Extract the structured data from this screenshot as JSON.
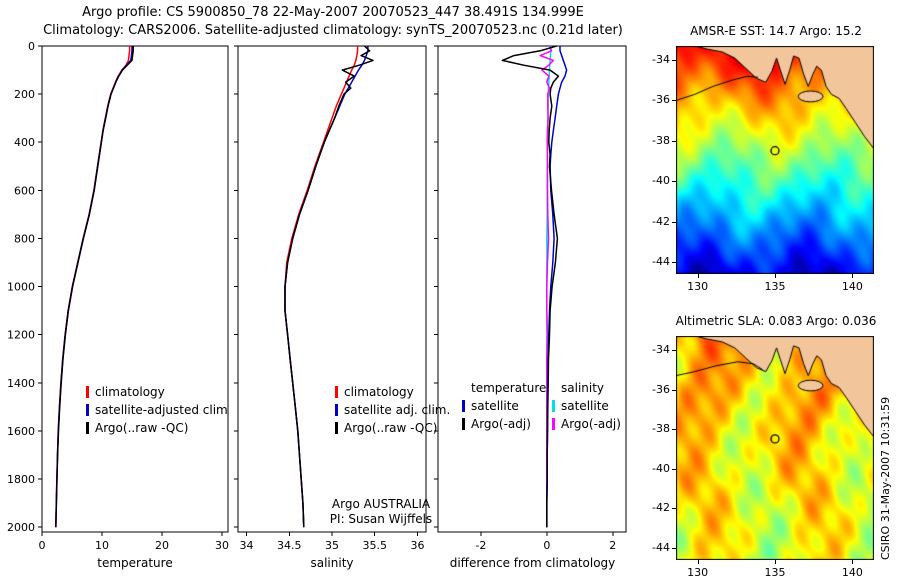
{
  "title": {
    "line1": "Argo profile: CS 5900850_78 22-May-2007 20070523_447 38.491S 134.999E",
    "line2": "Climatology: CARS2006. Satellite-adjusted climatology: synTS_20070523.nc (0.21d later)"
  },
  "credit": "CSIRO 31-May-2007 10:31:59",
  "colors": {
    "climatology": "#ff0000",
    "satellite": "#0000cd",
    "argo": "#000000",
    "satellite_salinity": "#00e0e8",
    "argo_salinity": "#ff00ff",
    "land": "#f2c59b",
    "coast": "#000000"
  },
  "coastline": [
    [
      128.5,
      -33.35
    ],
    [
      129.6,
      -33.25
    ],
    [
      130.6,
      -33.45
    ],
    [
      131.6,
      -33.6
    ],
    [
      132.4,
      -33.9
    ],
    [
      133.1,
      -34.4
    ],
    [
      133.8,
      -34.9
    ],
    [
      134.4,
      -35.1
    ],
    [
      134.8,
      -34.55
    ],
    [
      135.1,
      -33.9
    ],
    [
      135.35,
      -34.5
    ],
    [
      135.65,
      -35.2
    ],
    [
      135.95,
      -34.5
    ],
    [
      136.2,
      -33.8
    ],
    [
      136.55,
      -33.9
    ],
    [
      136.85,
      -34.7
    ],
    [
      137.15,
      -35.3
    ],
    [
      137.45,
      -34.7
    ],
    [
      137.7,
      -34.3
    ],
    [
      138.0,
      -34.5
    ],
    [
      138.3,
      -35.3
    ],
    [
      138.65,
      -35.7
    ],
    [
      139.15,
      -35.9
    ],
    [
      139.6,
      -36.4
    ],
    [
      140.2,
      -37.1
    ],
    [
      140.8,
      -37.8
    ],
    [
      141.5,
      -38.5
    ]
  ],
  "island": {
    "lon": 137.3,
    "lat": -35.8,
    "rx": 0.8,
    "ry": 0.27
  },
  "chart_data": [
    {
      "type": "line",
      "name": "temperature-profile",
      "xlabel": "temperature",
      "ylabel": "",
      "xlim": [
        0,
        31
      ],
      "ylim": [
        0,
        2020
      ],
      "xticks": [
        0,
        10,
        20,
        30
      ],
      "yticks": [
        0,
        200,
        400,
        600,
        800,
        1000,
        1200,
        1400,
        1600,
        1800,
        2000
      ],
      "grid": false,
      "legend_position": "lower-left",
      "depths": [
        0,
        20,
        40,
        60,
        80,
        100,
        125,
        150,
        175,
        200,
        250,
        300,
        350,
        400,
        450,
        500,
        600,
        700,
        800,
        900,
        1000,
        1100,
        1200,
        1300,
        1400,
        1500,
        1600,
        1700,
        1800,
        1900,
        2000
      ],
      "series": [
        {
          "name": "climatology",
          "color": "#ff0000",
          "values": [
            14.6,
            14.6,
            14.5,
            14.4,
            14.0,
            13.3,
            12.7,
            12.25,
            11.85,
            11.45,
            10.95,
            10.55,
            10.15,
            9.85,
            9.55,
            9.25,
            8.65,
            7.85,
            6.85,
            5.95,
            5.05,
            4.35,
            3.85,
            3.45,
            3.15,
            2.9,
            2.7,
            2.58,
            2.47,
            2.38,
            2.3
          ]
        },
        {
          "name": "satellite-adjusted climatology",
          "color": "#0000cd",
          "values": [
            15.0,
            15.0,
            14.9,
            14.8,
            14.1,
            13.4,
            12.75,
            12.3,
            11.9,
            11.5,
            11.0,
            10.6,
            10.18,
            9.88,
            9.57,
            9.27,
            8.67,
            7.87,
            6.87,
            5.97,
            5.07,
            4.37,
            3.87,
            3.47,
            3.17,
            2.92,
            2.72,
            2.59,
            2.48,
            2.39,
            2.3
          ]
        },
        {
          "name": "Argo(..raw -QC)",
          "color": "#000000",
          "values": [
            15.2,
            15.2,
            15.1,
            15.0,
            14.2,
            13.4,
            12.8,
            12.3,
            11.9,
            11.5,
            11.0,
            10.6,
            10.2,
            9.9,
            9.6,
            9.3,
            8.7,
            7.9,
            6.9,
            6.0,
            5.1,
            4.4,
            3.9,
            3.5,
            3.2,
            2.95,
            2.75,
            2.6,
            2.5,
            2.4,
            2.3
          ]
        }
      ]
    },
    {
      "type": "line",
      "name": "salinity-profile",
      "xlabel": "salinity",
      "ylabel": "",
      "xlim": [
        33.9,
        36.1
      ],
      "ylim": [
        0,
        2020
      ],
      "xticks": [
        34,
        34.5,
        35,
        35.5,
        36
      ],
      "yticks": [
        0,
        200,
        400,
        600,
        800,
        1000,
        1200,
        1400,
        1600,
        1800,
        2000
      ],
      "grid": false,
      "legend_position": "lower-left",
      "annotation": [
        "Argo AUSTRALIA",
        "PI: Susan Wijffels"
      ],
      "depths": [
        0,
        20,
        40,
        60,
        80,
        100,
        125,
        150,
        175,
        200,
        250,
        300,
        350,
        400,
        450,
        500,
        600,
        700,
        800,
        900,
        1000,
        1100,
        1200,
        1300,
        1400,
        1500,
        1600,
        1700,
        1800,
        1900,
        2000
      ],
      "series": [
        {
          "name": "climatology",
          "color": "#ff0000",
          "values": [
            35.3,
            35.3,
            35.29,
            35.28,
            35.26,
            35.23,
            35.2,
            35.17,
            35.14,
            35.11,
            35.05,
            35.0,
            34.95,
            34.9,
            34.85,
            34.8,
            34.71,
            34.61,
            34.53,
            34.47,
            34.45,
            34.45,
            34.48,
            34.51,
            34.54,
            34.57,
            34.6,
            34.62,
            34.64,
            34.66,
            34.67
          ]
        },
        {
          "name": "satellite adj. clim.",
          "color": "#0000cd",
          "values": [
            35.42,
            35.42,
            35.4,
            35.38,
            35.35,
            35.31,
            35.27,
            35.23,
            35.19,
            35.15,
            35.09,
            35.03,
            34.97,
            34.91,
            34.86,
            34.81,
            34.72,
            34.62,
            34.54,
            34.48,
            34.45,
            34.45,
            34.48,
            34.51,
            34.54,
            34.57,
            34.6,
            34.62,
            34.64,
            34.66,
            34.67
          ]
        },
        {
          "name": "Argo(..raw -QC)",
          "color": "#000000",
          "values": [
            35.38,
            35.44,
            35.34,
            35.48,
            35.32,
            35.12,
            35.26,
            35.16,
            35.22,
            35.14,
            35.08,
            35.03,
            34.97,
            34.91,
            34.86,
            34.81,
            34.72,
            34.62,
            34.54,
            34.48,
            34.45,
            34.45,
            34.48,
            34.51,
            34.54,
            34.57,
            34.6,
            34.62,
            34.64,
            34.66,
            34.67
          ]
        }
      ]
    },
    {
      "type": "line",
      "name": "difference-profile",
      "xlabel": "difference from climatology",
      "ylabel": "",
      "xlim": [
        -3.3,
        2.4
      ],
      "ylim": [
        0,
        2020
      ],
      "xticks": [
        -2,
        0,
        2
      ],
      "yticks": [
        0,
        200,
        400,
        600,
        800,
        1000,
        1200,
        1400,
        1600,
        1800,
        2000
      ],
      "grid": false,
      "legend_headers": [
        "temperature",
        "salinity"
      ],
      "depths": [
        0,
        20,
        40,
        60,
        80,
        100,
        125,
        150,
        175,
        200,
        250,
        300,
        350,
        400,
        450,
        500,
        600,
        700,
        800,
        900,
        1000,
        1100,
        1200,
        1300,
        1400,
        1500,
        1600,
        1700,
        1800,
        1900,
        2000
      ],
      "series": [
        {
          "name": "satellite",
          "group": "temperature",
          "color": "#0000cd",
          "values": [
            0.4,
            0.4,
            0.45,
            0.5,
            0.55,
            0.6,
            0.55,
            0.45,
            0.4,
            0.35,
            0.3,
            0.25,
            0.2,
            0.15,
            0.12,
            0.1,
            0.12,
            0.18,
            0.22,
            0.18,
            0.12,
            0.08,
            0.06,
            0.04,
            0.03,
            0.02,
            0.02,
            0.01,
            0.01,
            0.0,
            0.0
          ]
        },
        {
          "name": "Argo(-adj)",
          "group": "temperature",
          "color": "#000000",
          "values": [
            0.3,
            -0.2,
            -1.0,
            -1.35,
            -0.7,
            0.1,
            0.35,
            0.2,
            0.12,
            0.1,
            0.15,
            0.1,
            0.07,
            0.06,
            0.1,
            0.08,
            0.14,
            0.22,
            0.32,
            0.26,
            0.16,
            0.1,
            0.08,
            0.05,
            0.04,
            0.03,
            0.02,
            0.01,
            0.01,
            0.0,
            0.0
          ]
        },
        {
          "name": "satellite",
          "group": "salinity",
          "color": "#00e0e8",
          "values": [
            0.12,
            0.12,
            0.11,
            0.1,
            0.09,
            0.08,
            0.07,
            0.06,
            0.05,
            0.04,
            0.04,
            0.03,
            0.02,
            0.02,
            0.01,
            0.01,
            0.01,
            0.01,
            0.0,
            0.0,
            0.0,
            0.0,
            0.0,
            0.0,
            0.0,
            0.0,
            0.0,
            0.0,
            0.0,
            0.0,
            0.0
          ]
        },
        {
          "name": "Argo(-adj)",
          "group": "salinity",
          "color": "#ff00ff",
          "values": [
            0.08,
            0.14,
            -0.2,
            0.2,
            0.06,
            -0.15,
            0.06,
            0.0,
            0.08,
            0.03,
            0.03,
            0.04,
            0.02,
            0.01,
            0.02,
            0.02,
            0.02,
            0.03,
            0.05,
            0.02,
            0.0,
            0.0,
            0.02,
            0.0,
            0.0,
            0.0,
            0.0,
            0.0,
            0.0,
            0.0,
            0.0
          ]
        }
      ]
    },
    {
      "type": "heatmap",
      "name": "sst-map",
      "title": "AMSR-E SST: 14.7 Argo: 15.2",
      "palette": "sst",
      "lon_range": [
        128.6,
        141.4
      ],
      "lat_range": [
        -44.6,
        -33.3
      ],
      "xticks": [
        130,
        135,
        140
      ],
      "yticks": [
        -34,
        -36,
        -38,
        -40,
        -42,
        -44
      ],
      "marker": {
        "lon": 135.0,
        "lat": -38.49
      },
      "contour": [
        [
          128.6,
          -36.0
        ],
        [
          129.8,
          -35.7
        ],
        [
          131.0,
          -35.3
        ],
        [
          132.2,
          -35.0
        ],
        [
          133.2,
          -34.8
        ],
        [
          133.9,
          -34.85
        ]
      ]
    },
    {
      "type": "heatmap",
      "name": "sla-map",
      "title": "Altimetric SLA: 0.083 Argo: 0.036",
      "palette": "sla",
      "lon_range": [
        128.6,
        141.4
      ],
      "lat_range": [
        -44.6,
        -33.3
      ],
      "xticks": [
        130,
        135,
        140
      ],
      "yticks": [
        -34,
        -36,
        -38,
        -40,
        -42,
        -44
      ],
      "marker": {
        "lon": 135.0,
        "lat": -38.49
      },
      "contour": [
        [
          128.6,
          -35.3
        ],
        [
          129.8,
          -35.1
        ],
        [
          131.2,
          -34.8
        ],
        [
          132.6,
          -34.6
        ],
        [
          133.6,
          -34.7
        ],
        [
          134.2,
          -35.0
        ]
      ]
    }
  ]
}
